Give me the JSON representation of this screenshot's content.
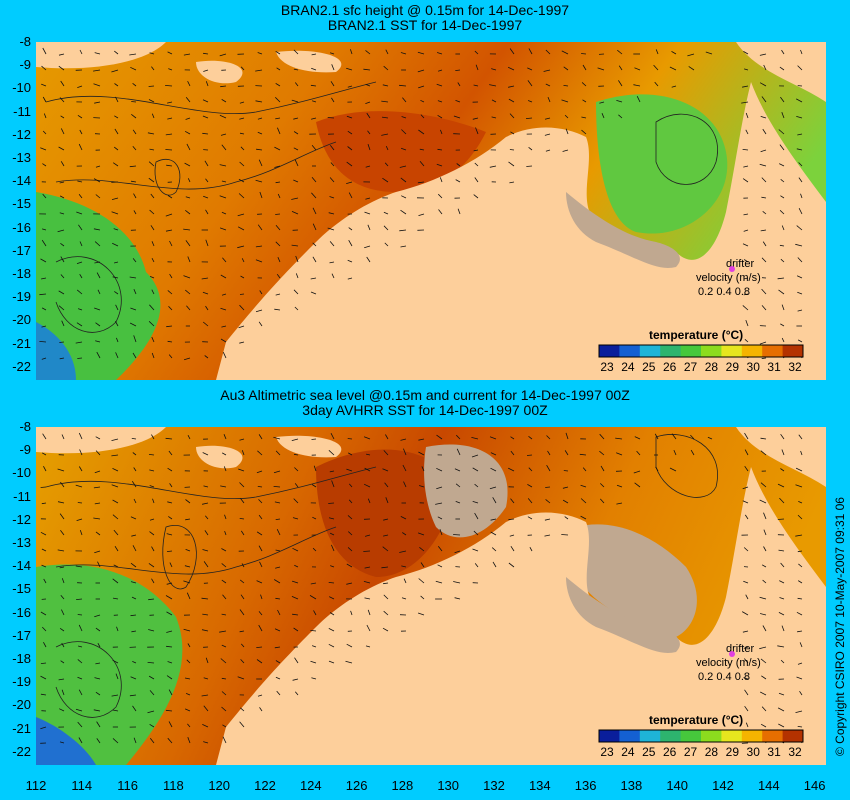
{
  "titles": {
    "top_line1": "BRAN2.1 sfc height @ 0.15m for 14-Dec-1997",
    "top_line2": "BRAN2.1 SST for 14-Dec-1997",
    "bottom_line1": "Au3 Altimetric sea level  @0.15m and current for 14-Dec-1997 00Z",
    "bottom_line2": "3day AVHRR SST for 14-Dec-1997 00Z"
  },
  "lat_ticks": [
    "-8",
    "-9",
    "-10",
    "-11",
    "-12",
    "-13",
    "-14",
    "-15",
    "-16",
    "-17",
    "-18",
    "-19",
    "-20",
    "-21",
    "-22"
  ],
  "lon_ticks": [
    "112",
    "114",
    "116",
    "118",
    "120",
    "122",
    "124",
    "126",
    "128",
    "130",
    "132",
    "134",
    "136",
    "138",
    "140",
    "142",
    "144",
    "146"
  ],
  "legend": {
    "title": "temperature (°C)",
    "ticks": [
      "23",
      "24",
      "25",
      "26",
      "27",
      "28",
      "29",
      "30",
      "31",
      "32"
    ],
    "colors": [
      "#0a1e9b",
      "#1460d2",
      "#1eb4d7",
      "#2db46e",
      "#46c83c",
      "#8cdc1e",
      "#e6e61e",
      "#f5b400",
      "#e66e00",
      "#b43200"
    ]
  },
  "drifter": {
    "label1": "drifter",
    "label2": "velocity (m/s)",
    "scale": "0.2 0.4 0.8"
  },
  "copyright": "© Copyright CSIRO 2007  10-May-2007 09:31 06",
  "colors": {
    "background": "#00ccff",
    "land": "#fdcf9b",
    "no_data": "#c0a890",
    "warm": "#e07000",
    "hot": "#c03c00",
    "mid": "#f0a000",
    "cool": "#44c044",
    "cold": "#1a6ad8"
  }
}
